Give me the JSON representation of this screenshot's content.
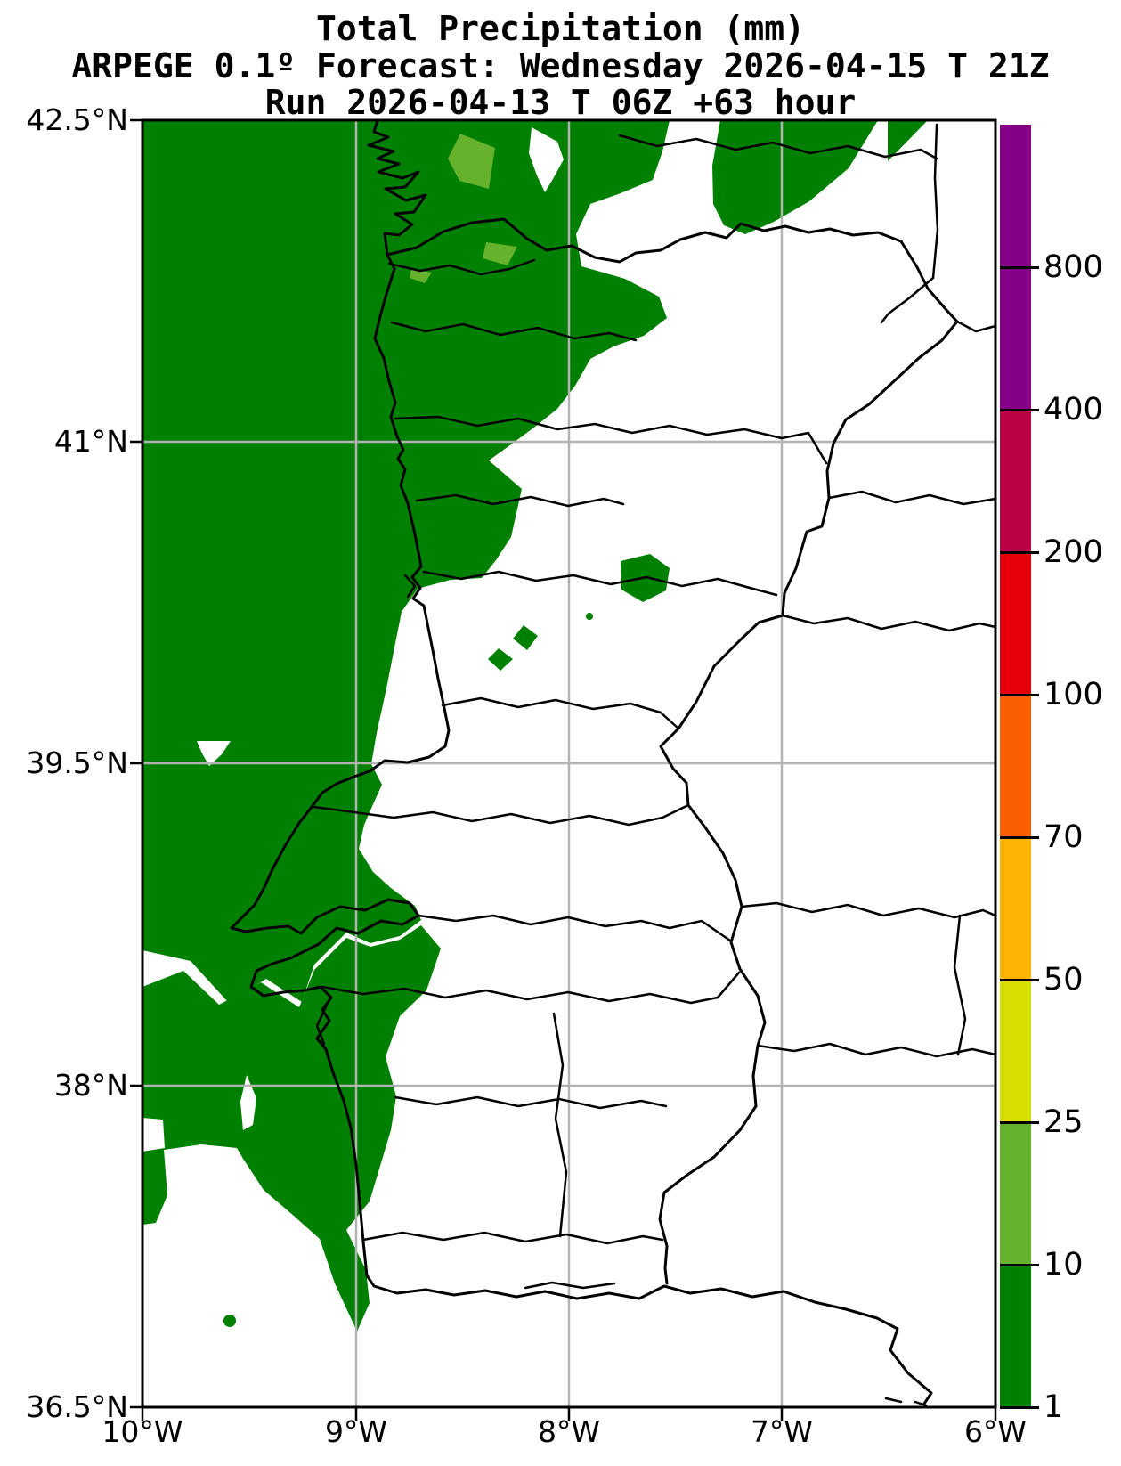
{
  "title": {
    "line1": "Total Precipitation (mm)",
    "line2": "ARPEGE 0.1º Forecast: Wednesday 2026-04-15 T 21Z",
    "line3": "Run 2026-04-13 T 06Z +63 hour"
  },
  "map": {
    "lat_tick_labels": [
      "42.5°N",
      "41°N",
      "39.5°N",
      "38°N",
      "36.5°N"
    ],
    "lon_tick_labels": [
      "10°W",
      "9°W",
      "8°W",
      "7°W",
      "6°W"
    ],
    "colors": {
      "precip_1_10": "#008000",
      "precip_10_25": "#66b22c",
      "land": "#ffffff",
      "border": "#000000",
      "gridline": "#b3b3b3"
    }
  },
  "colorbar": {
    "tick_labels": [
      "800",
      "400",
      "200",
      "100",
      "70",
      "50",
      "25",
      "10",
      "1"
    ],
    "segments_top_to_bottom": [
      "#860086",
      "#860086",
      "#bb0045",
      "#e60009",
      "#fa5d02",
      "#fcb505",
      "#d7e000",
      "#66b22c",
      "#008000"
    ]
  },
  "chart_data": {
    "type": "heatmap",
    "title": "Total Precipitation (mm)",
    "model": "ARPEGE 0.1º",
    "valid_time": "Wednesday 2026-04-15 T 21Z",
    "run_time": "2026-04-13 T 06Z",
    "lead": "+63 hour",
    "levels_mm": [
      1,
      10,
      25,
      50,
      70,
      100,
      200,
      400,
      800
    ],
    "level_colors_low_to_high": [
      "#008000",
      "#66b22c",
      "#d7e000",
      "#fcb505",
      "#fa5d02",
      "#e60009",
      "#bb0045",
      "#860086",
      "#860086"
    ],
    "lon_ticks_deg_west": [
      10,
      9,
      8,
      7,
      6
    ],
    "lat_ticks_deg_north": [
      42.5,
      41,
      39.5,
      38,
      36.5
    ],
    "depicted": [
      {
        "range_mm": "1-10",
        "where": "Atlantic ocean band along the west coast and most of northern Portugal / Galicia, plus isolated inland patches"
      },
      {
        "range_mm": "10-25",
        "where": "three small patches in the far north"
      }
    ]
  }
}
